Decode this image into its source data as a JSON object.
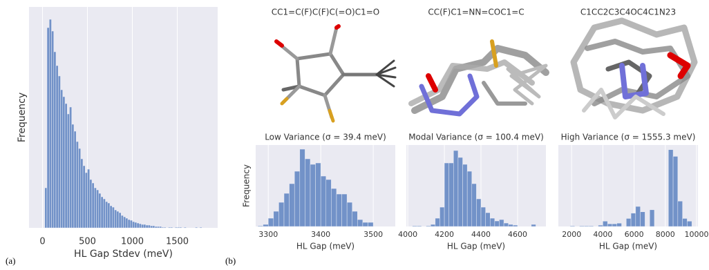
{
  "chart_data": [
    {
      "type": "histogram",
      "label": "(a)",
      "xlabel": "HL Gap Stdev (meV)",
      "ylabel": "Frequency",
      "color": "#7292c8",
      "grid": true,
      "xlim": [
        -150,
        1950
      ],
      "ylim": [
        0,
        320
      ],
      "xticks": [
        0,
        500,
        1000,
        1500
      ],
      "bins": [
        25,
        50,
        75,
        100,
        125,
        150,
        175,
        200,
        225,
        250,
        275,
        300,
        325,
        350,
        375,
        400,
        425,
        450,
        475,
        500,
        525,
        550,
        575,
        600,
        625,
        650,
        675,
        700,
        725,
        750,
        775,
        800,
        825,
        850,
        875,
        900,
        925,
        950,
        975,
        1000,
        1025,
        1050,
        1075,
        1100,
        1125,
        1150,
        1175,
        1200,
        1225,
        1250,
        1275,
        1300,
        1325,
        1350,
        1375,
        1400,
        1425,
        1450,
        1475,
        1500,
        1525,
        1550,
        1575,
        1600,
        1625,
        1650,
        1675,
        1700,
        1725,
        1750,
        1775
      ],
      "values": [
        58,
        290,
        302,
        285,
        255,
        235,
        220,
        200,
        190,
        180,
        165,
        175,
        150,
        140,
        125,
        115,
        100,
        90,
        80,
        85,
        70,
        65,
        58,
        55,
        50,
        45,
        42,
        38,
        36,
        32,
        30,
        26,
        24,
        22,
        18,
        16,
        14,
        12,
        11,
        9,
        8,
        7,
        6,
        5,
        5,
        4,
        4,
        3,
        3,
        2,
        2,
        2,
        1,
        1,
        0,
        1,
        1,
        0,
        1,
        1,
        1,
        0,
        1,
        0,
        0,
        0,
        0,
        1,
        0,
        1
      ]
    },
    {
      "type": "histogram",
      "label": "(b)",
      "subtitle": "CC1=C(F)C(F)C(=O)C1=O",
      "title": "Low Variance (σ = 39.4 meV)",
      "xlabel": "HL Gap (meV)",
      "ylabel": "Frequency",
      "color": "#7292c8",
      "grid": true,
      "xlim": [
        3276,
        3542
      ],
      "ylim": [
        0,
        118
      ],
      "xticks": [
        3300,
        3400,
        3500
      ],
      "bins": [
        3280,
        3290,
        3300,
        3310,
        3320,
        3330,
        3340,
        3350,
        3360,
        3370,
        3380,
        3390,
        3400,
        3410,
        3420,
        3430,
        3440,
        3450,
        3460,
        3470,
        3480,
        3490,
        3500
      ],
      "values": [
        1,
        3,
        12,
        22,
        35,
        48,
        62,
        80,
        112,
        98,
        90,
        92,
        73,
        68,
        55,
        47,
        47,
        35,
        22,
        10,
        6,
        6
      ]
    },
    {
      "type": "histogram",
      "subtitle": "CC(F)C1=NN=COC1=C",
      "title": "Modal Variance (σ = 100.4 meV)",
      "xlabel": "HL Gap (meV)",
      "color": "#7292c8",
      "grid": true,
      "xlim": [
        3992,
        4755
      ],
      "ylim": [
        0,
        118
      ],
      "xticks": [
        4000,
        4200,
        4400,
        4600
      ],
      "bins": [
        4025,
        4050,
        4075,
        4100,
        4125,
        4150,
        4175,
        4200,
        4225,
        4250,
        4275,
        4300,
        4325,
        4350,
        4375,
        4400,
        4425,
        4450,
        4475,
        4500,
        4525,
        4550,
        4575,
        4600,
        4625,
        4650,
        4675,
        4700,
        4725
      ],
      "values": [
        1,
        1,
        0,
        1,
        3,
        12,
        28,
        92,
        92,
        110,
        100,
        90,
        80,
        62,
        40,
        28,
        20,
        12,
        8,
        10,
        5,
        3,
        2,
        0,
        0,
        0,
        3,
        0
      ]
    },
    {
      "type": "histogram",
      "subtitle": "C1CC2C3C4OC4C1N23",
      "title": "High Variance (σ = 1555.3 meV)",
      "xlabel": "HL Gap (meV)",
      "color": "#7292c8",
      "grid": true,
      "xlim": [
        1150,
        10090
      ],
      "ylim": [
        0,
        122
      ],
      "xticks": [
        2000,
        4000,
        6000,
        8000,
        10000
      ],
      "bins": [
        1900,
        2200,
        2500,
        2800,
        3100,
        3400,
        3700,
        4000,
        4300,
        4600,
        4900,
        5200,
        5500,
        5800,
        6100,
        6400,
        6700,
        7000,
        7300,
        7600,
        7900,
        8200,
        8500,
        8800,
        9100,
        9400,
        9700
      ],
      "values": [
        1,
        0,
        1,
        1,
        1,
        0,
        2,
        8,
        4,
        4,
        5,
        0,
        12,
        20,
        30,
        22,
        0,
        25,
        0,
        0,
        0,
        115,
        105,
        38,
        12,
        8
      ]
    }
  ]
}
